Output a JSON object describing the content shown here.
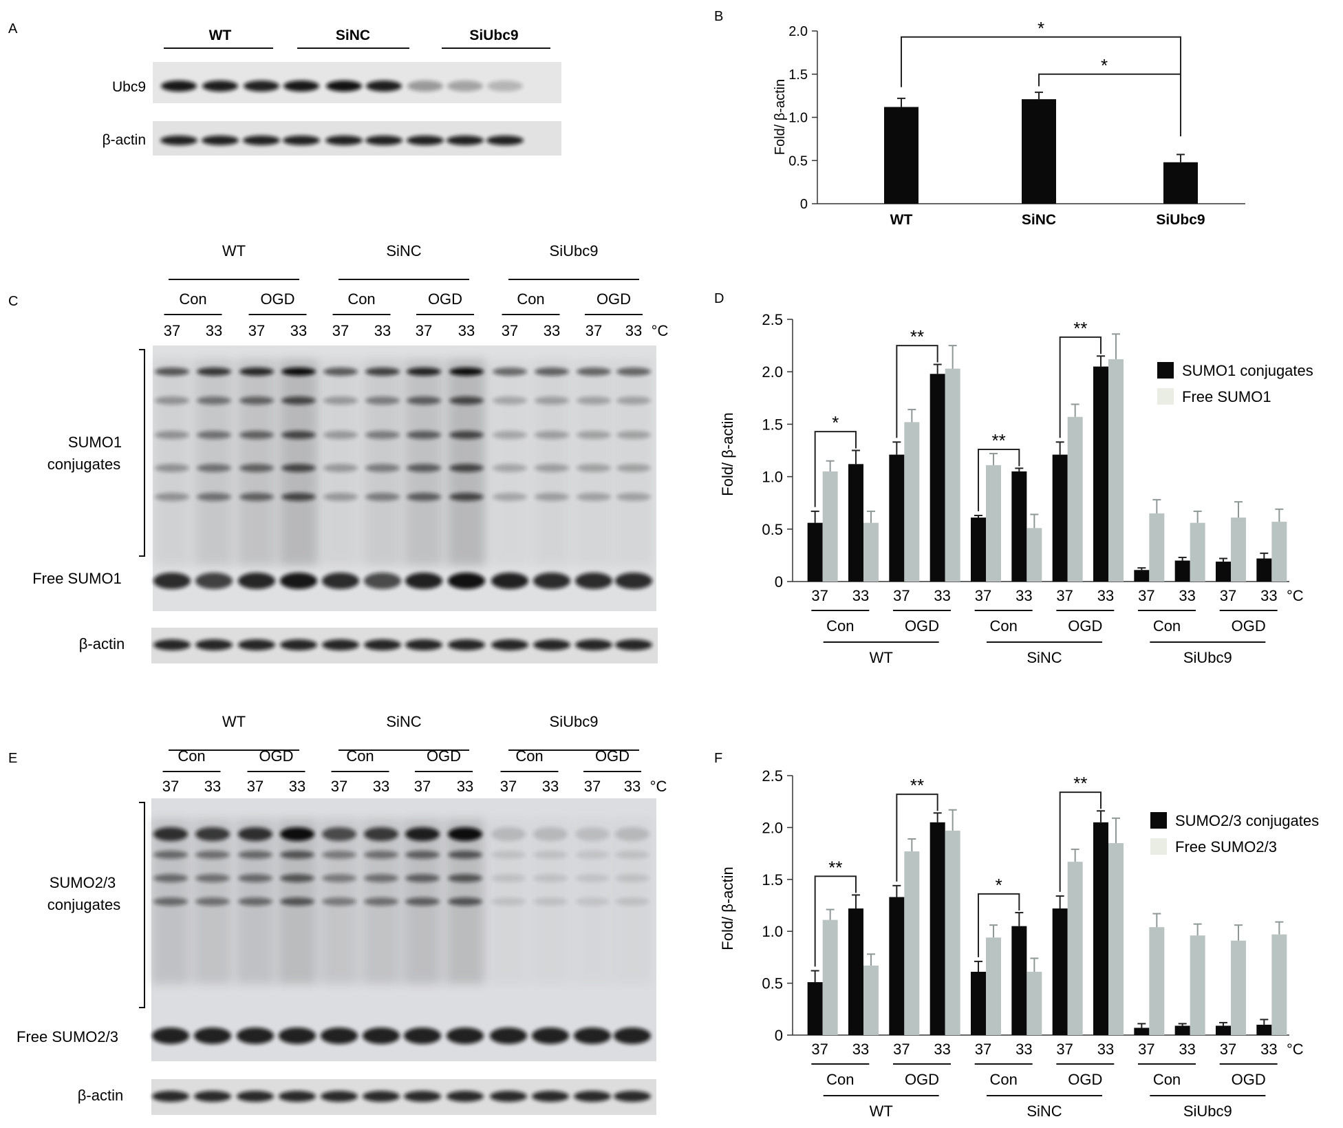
{
  "panel_letters": {
    "a": "A",
    "b": "B",
    "c": "C",
    "d": "D",
    "e": "E",
    "f": "F"
  },
  "blot_a": {
    "groups": [
      "WT",
      "SiNC",
      "SiUbc9"
    ],
    "rows": [
      "Ubc9",
      "β-actin"
    ]
  },
  "blot_c": {
    "groups": [
      "WT",
      "SiNC",
      "SiUbc9"
    ],
    "conditions": [
      "Con",
      "OGD"
    ],
    "temps": [
      "37",
      "33"
    ],
    "unit": "°C",
    "row_labels": {
      "conjugates_line1": "SUMO1",
      "conjugates_line2": "conjugates",
      "free": "Free SUMO1",
      "actin": "β-actin"
    }
  },
  "blot_e": {
    "groups": [
      "WT",
      "SiNC",
      "SiUbc9"
    ],
    "conditions": [
      "Con",
      "OGD"
    ],
    "temps": [
      "37",
      "33"
    ],
    "unit": "°C",
    "row_labels": {
      "conjugates_line1": "SUMO2/3",
      "conjugates_line2": "conjugates",
      "free": "Free SUMO2/3",
      "actin": "β-actin"
    }
  },
  "chart_data": [
    {
      "id": "B",
      "type": "bar",
      "ylabel": "Fold/ β-actin",
      "ylim": [
        0,
        2.0
      ],
      "yticks": [
        "0",
        "0.5",
        "1.0",
        "1.5",
        "2.0"
      ],
      "categories": [
        "WT",
        "SiNC",
        "SiUbc9"
      ],
      "values": [
        1.12,
        1.21,
        0.48
      ],
      "errors": [
        0.1,
        0.08,
        0.09
      ],
      "significance": [
        {
          "from": "WT",
          "to": "SiUbc9",
          "label": "*"
        },
        {
          "from": "SiNC",
          "to": "SiUbc9",
          "label": "*"
        }
      ],
      "color": "#0a0a0a"
    },
    {
      "id": "D",
      "type": "bar",
      "ylabel": "Fold/ β-actin",
      "ylim": [
        0,
        2.5
      ],
      "yticks": [
        "0",
        "0.5",
        "1.0",
        "1.5",
        "2.0",
        "2.5"
      ],
      "temps": [
        "37",
        "33",
        "37",
        "33",
        "37",
        "33",
        "37",
        "33",
        "37",
        "33",
        "37",
        "33"
      ],
      "unit": "°C",
      "conditions": [
        "Con",
        "OGD",
        "Con",
        "OGD",
        "Con",
        "OGD"
      ],
      "groups": [
        "WT",
        "SiNC",
        "SiUbc9"
      ],
      "series": [
        {
          "name": "SUMO1 conjugates",
          "color": "#0a0a0a",
          "values": [
            0.56,
            1.12,
            1.21,
            1.98,
            0.61,
            1.05,
            1.21,
            2.05,
            0.11,
            0.2,
            0.19,
            0.22
          ],
          "errors": [
            0.11,
            0.13,
            0.12,
            0.09,
            0.02,
            0.03,
            0.12,
            0.1,
            0.02,
            0.03,
            0.03,
            0.05
          ]
        },
        {
          "name": "Free SUMO1",
          "color": "#b9c3c1",
          "values": [
            1.05,
            0.56,
            1.52,
            2.03,
            1.11,
            0.51,
            1.57,
            2.12,
            0.65,
            0.56,
            0.61,
            0.57
          ],
          "errors": [
            0.1,
            0.11,
            0.12,
            0.22,
            0.11,
            0.13,
            0.12,
            0.24,
            0.13,
            0.11,
            0.15,
            0.12
          ]
        }
      ],
      "significance": [
        {
          "from": 0,
          "to": 1,
          "label": "*"
        },
        {
          "from": 2,
          "to": 3,
          "label": "**"
        },
        {
          "from": 4,
          "to": 5,
          "label": "**"
        },
        {
          "from": 6,
          "to": 7,
          "label": "**"
        }
      ]
    },
    {
      "id": "F",
      "type": "bar",
      "ylabel": "Fold/ β-actin",
      "ylim": [
        0,
        2.5
      ],
      "yticks": [
        "0",
        "0.5",
        "1.0",
        "1.5",
        "2.0",
        "2.5"
      ],
      "temps": [
        "37",
        "33",
        "37",
        "33",
        "37",
        "33",
        "37",
        "33",
        "37",
        "33",
        "37",
        "33"
      ],
      "unit": "°C",
      "conditions": [
        "Con",
        "OGD",
        "Con",
        "OGD",
        "Con",
        "OGD"
      ],
      "groups": [
        "WT",
        "SiNC",
        "SiUbc9"
      ],
      "series": [
        {
          "name": "SUMO2/3 conjugates",
          "color": "#0a0a0a",
          "values": [
            0.51,
            1.22,
            1.33,
            2.05,
            0.61,
            1.05,
            1.22,
            2.05,
            0.07,
            0.09,
            0.09,
            0.1
          ],
          "errors": [
            0.11,
            0.13,
            0.11,
            0.09,
            0.1,
            0.13,
            0.12,
            0.11,
            0.04,
            0.02,
            0.03,
            0.05
          ]
        },
        {
          "name": "Free SUMO2/3",
          "color": "#b9c3c1",
          "values": [
            1.11,
            0.67,
            1.77,
            1.97,
            0.94,
            0.61,
            1.67,
            1.85,
            1.04,
            0.96,
            0.91,
            0.97
          ],
          "errors": [
            0.1,
            0.11,
            0.12,
            0.2,
            0.12,
            0.13,
            0.12,
            0.24,
            0.13,
            0.11,
            0.15,
            0.12
          ]
        }
      ],
      "significance": [
        {
          "from": 0,
          "to": 1,
          "label": "**"
        },
        {
          "from": 2,
          "to": 3,
          "label": "**"
        },
        {
          "from": 4,
          "to": 5,
          "label": "*"
        },
        {
          "from": 6,
          "to": 7,
          "label": "**"
        }
      ]
    }
  ]
}
